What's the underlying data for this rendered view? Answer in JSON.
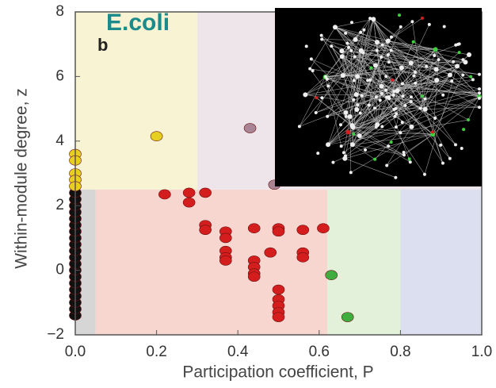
{
  "chart_data": {
    "type": "scatter",
    "annotation": "E.coli",
    "panel_label": "b",
    "x_label": "Participation coefficient, P",
    "y_label": "Within-module degree, z",
    "xlim": [
      0,
      1
    ],
    "ylim": [
      -2,
      8
    ],
    "xticks": [
      {
        "value": 0,
        "label": "0.0"
      },
      {
        "value": 0.2,
        "label": "0.2"
      },
      {
        "value": 0.4,
        "label": "0.4"
      },
      {
        "value": 0.6,
        "label": "0.6"
      },
      {
        "value": 0.8,
        "label": "0.8"
      },
      {
        "value": 1,
        "label": "1.0"
      }
    ],
    "yticks": [
      {
        "value": -2,
        "label": "−2"
      },
      0,
      2,
      4,
      6,
      8
    ],
    "regions": [
      {
        "xlim": [
          0,
          0.05
        ],
        "ylim": [
          -2,
          2.5
        ],
        "color": "#d6d6d6"
      },
      {
        "xlim": [
          0.05,
          0.62
        ],
        "ylim": [
          -2,
          2.5
        ],
        "color": "#f7d6d0"
      },
      {
        "xlim": [
          0.62,
          0.8
        ],
        "ylim": [
          -2,
          2.5
        ],
        "color": "#e3f0da"
      },
      {
        "xlim": [
          0.8,
          1
        ],
        "ylim": [
          -2,
          2.5
        ],
        "color": "#dcdff0"
      },
      {
        "xlim": [
          0,
          0.3
        ],
        "ylim": [
          2.5,
          8
        ],
        "color": "#f8f3d2"
      },
      {
        "xlim": [
          0.3,
          1
        ],
        "ylim": [
          2.5,
          8
        ],
        "color": "#ede5ea"
      }
    ],
    "series": [
      {
        "color": "#111111",
        "x": [
          0,
          0,
          0,
          0,
          0,
          0,
          0,
          0,
          0,
          0,
          0,
          0,
          0,
          0,
          0,
          0,
          0,
          0,
          0,
          0
        ],
        "values": [
          -1.4,
          -1.2,
          -1,
          -0.8,
          -0.6,
          -0.4,
          -0.2,
          0,
          0.2,
          0.4,
          0.6,
          0.8,
          1,
          1.2,
          1.4,
          1.6,
          1.8,
          2,
          2.2,
          2.4
        ]
      },
      {
        "color": "#e6cf1e",
        "x": [
          0,
          0,
          0,
          0,
          0,
          0.2
        ],
        "values": [
          3.6,
          3.4,
          3.0,
          2.8,
          2.6,
          4.15
        ]
      },
      {
        "color": "#a98494",
        "x": [
          0.43,
          0.49
        ],
        "values": [
          4.4,
          2.65
        ]
      },
      {
        "color": "#d41e1e",
        "x": [
          0.22,
          0.28,
          0.28,
          0.32,
          0.32,
          0.32,
          0.37,
          0.37,
          0.37,
          0.37,
          0.37,
          0.44,
          0.44,
          0.44,
          0.44,
          0.44,
          0.48,
          0.5,
          0.5,
          0.5,
          0.5,
          0.5,
          0.5,
          0.5,
          0.56,
          0.56,
          0.56,
          0.61
        ],
        "values": [
          2.35,
          2.4,
          2.1,
          2.4,
          1.4,
          1.25,
          1.2,
          1.0,
          0.6,
          0.4,
          0.3,
          1.3,
          0.3,
          0.1,
          -0.1,
          -0.2,
          0.55,
          1.3,
          -0.6,
          -0.9,
          -1.1,
          -1.3,
          -1.45,
          1.2,
          1.25,
          0.55,
          0.4,
          1.3
        ]
      },
      {
        "color": "#3fae3f",
        "x": [
          0.63,
          0.67
        ],
        "values": [
          -0.15,
          -1.45
        ]
      }
    ]
  }
}
